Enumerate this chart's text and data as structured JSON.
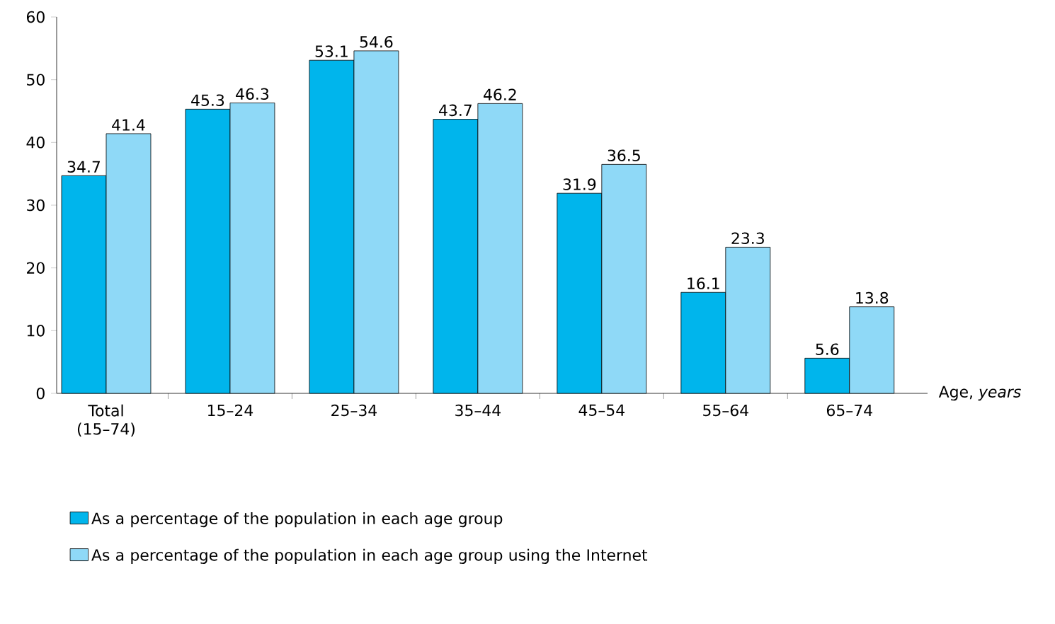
{
  "chart_data": {
    "type": "bar",
    "categories": [
      "Total (15–74)",
      "15–24",
      "25–34",
      "35–44",
      "45–54",
      "55–64",
      "65–74"
    ],
    "xlabel": "Age, *years*",
    "series": [
      {
        "name": "As a percentage of the population in each age group",
        "color": "#00b5ec",
        "values": [
          34.7,
          45.3,
          53.1,
          43.7,
          31.9,
          16.1,
          5.6
        ]
      },
      {
        "name": "As a percentage of the population in each age group using the Internet",
        "color": "#8fd9f7",
        "values": [
          41.4,
          46.3,
          54.6,
          46.2,
          36.5,
          23.3,
          13.8
        ]
      }
    ],
    "ylim": [
      0,
      60
    ],
    "yticks": [
      0,
      10,
      20,
      30,
      40,
      50,
      60
    ],
    "data_labels": true,
    "grid": false,
    "legend": "bottom left"
  }
}
